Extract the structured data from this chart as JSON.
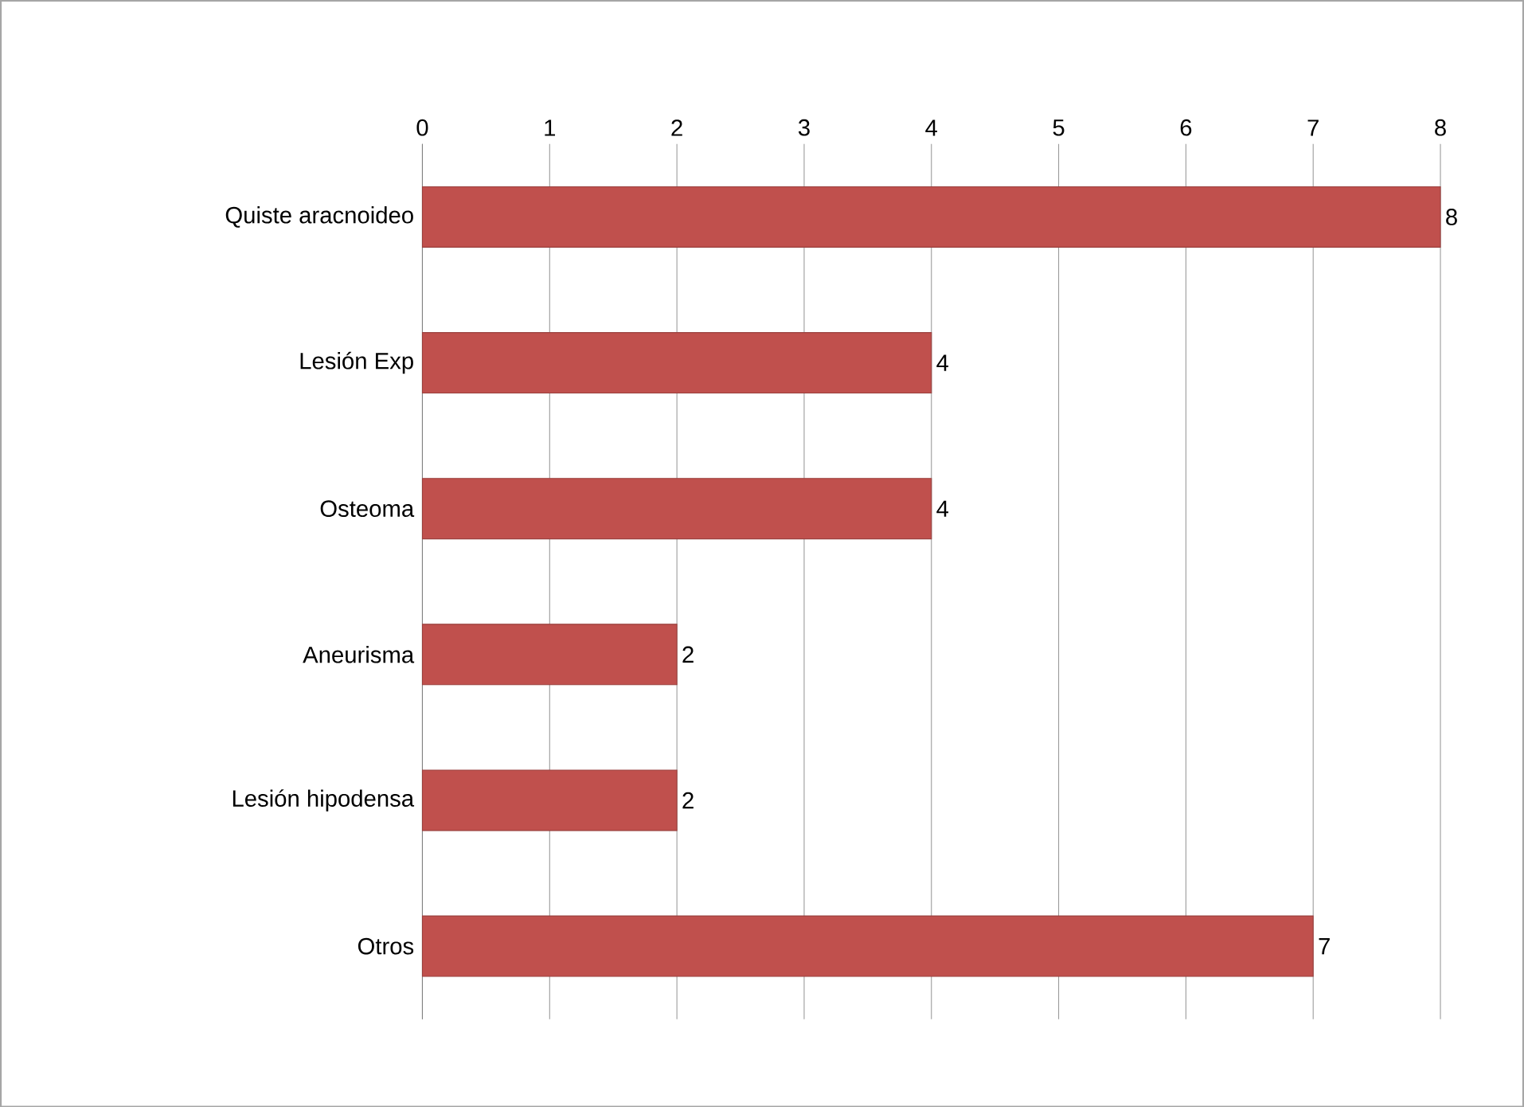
{
  "chart_data": {
    "type": "bar",
    "orientation": "horizontal",
    "categories": [
      "Quiste aracnoideo",
      "Lesión Exp",
      "Osteoma",
      "Aneurisma",
      "Lesión hipodensa",
      "Otros"
    ],
    "values": [
      8,
      4,
      4,
      2,
      2,
      7
    ],
    "color": "#c0504d",
    "xlim": [
      0,
      8
    ],
    "xticks": [
      0,
      1,
      2,
      3,
      4,
      5,
      6,
      7,
      8
    ],
    "grid": "x",
    "data_labels": true
  }
}
